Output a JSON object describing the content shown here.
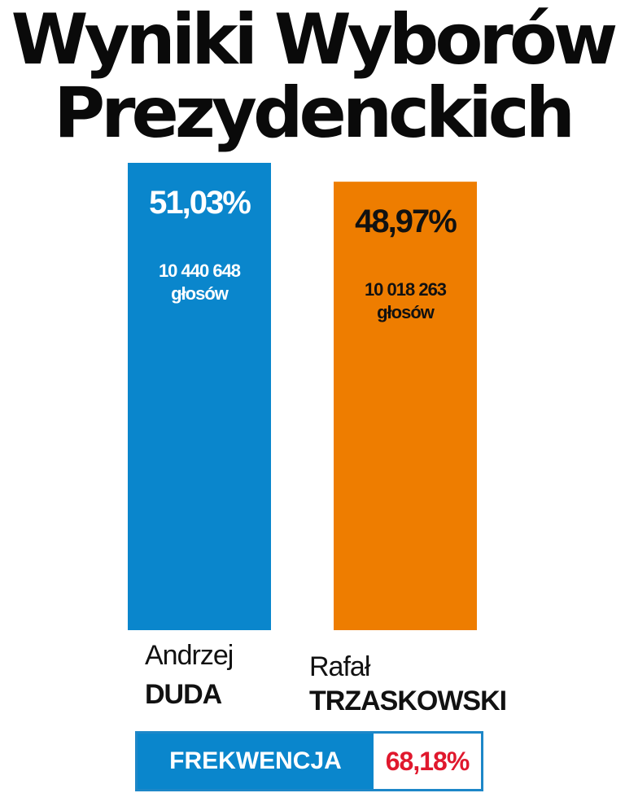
{
  "title_line1": "Wyniki Wyborów",
  "title_line2": "Prezydenckich",
  "chart_data": {
    "type": "bar",
    "title": "Wyniki Wyborów Prezydenckich",
    "categories": [
      "Andrzej DUDA",
      "Rafał TRZASKOWSKI"
    ],
    "values": [
      51.03,
      48.97
    ],
    "value_labels": [
      "51,03%",
      "48,97%"
    ],
    "votes_labels": [
      "10 440 648",
      "10 018 263"
    ],
    "votes_unit": "głosów",
    "colors": [
      "#0a86cc",
      "#ee7d00"
    ],
    "value_label_colors": [
      "#ffffff",
      "#111111"
    ],
    "ylim": [
      0,
      51.03
    ],
    "grid": false
  },
  "candidates": [
    {
      "first": "Andrzej",
      "last": "DUDA"
    },
    {
      "first": "Rafał",
      "last": "TRZASKOWSKI"
    }
  ],
  "turnout": {
    "label": "FREKWENCJA",
    "value": "68,18%"
  }
}
